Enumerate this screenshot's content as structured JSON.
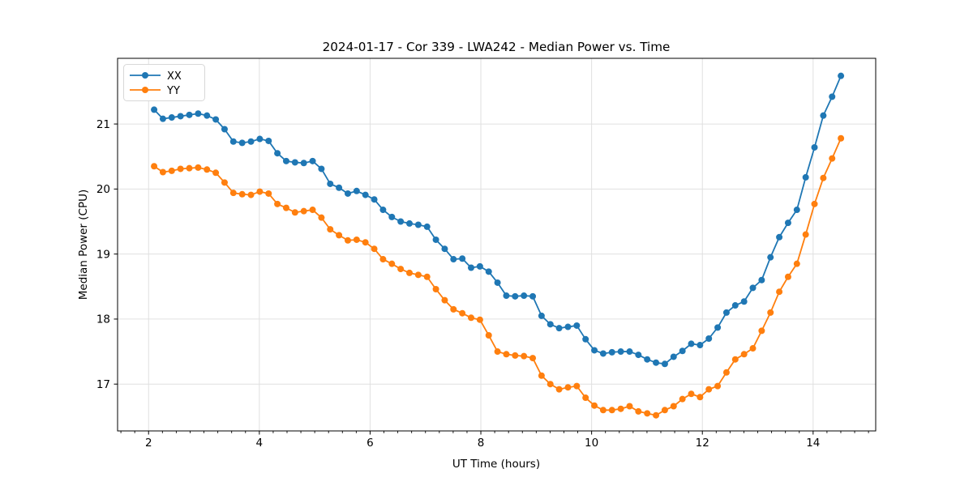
{
  "title": "2024-01-17 - Cor 339 - LWA242 - Median Power vs. Time",
  "colors": {
    "background": "#ffffff",
    "grid": "#e0e0e0",
    "axis": "#000000",
    "legend_border": "#d8d8d8",
    "series_xx": "#1f77b4",
    "series_yy": "#ff7f0e"
  },
  "chart_data": {
    "type": "line",
    "title": "2024-01-17 - Cor 339 - LWA242 - Median Power vs. Time",
    "xlabel": "UT Time (hours)",
    "ylabel": "Median Power (CPU)",
    "xlim": [
      1.44,
      15.13
    ],
    "ylim": [
      16.28,
      22.01
    ],
    "x_major_ticks": [
      2,
      4,
      6,
      8,
      10,
      12,
      14
    ],
    "x_minor_tick_step": 0.25,
    "y_major_ticks": [
      17,
      18,
      19,
      20,
      21
    ],
    "grid": true,
    "legend_position": "upper-left",
    "marker": "circle",
    "x": [
      2.1,
      2.259,
      2.418,
      2.577,
      2.736,
      2.895,
      3.054,
      3.213,
      3.372,
      3.531,
      3.69,
      3.849,
      4.008,
      4.167,
      4.326,
      4.485,
      4.644,
      4.803,
      4.962,
      5.121,
      5.28,
      5.439,
      5.598,
      5.757,
      5.916,
      6.075,
      6.234,
      6.393,
      6.552,
      6.711,
      6.87,
      7.029,
      7.188,
      7.347,
      7.506,
      7.665,
      7.824,
      7.983,
      8.142,
      8.301,
      8.46,
      8.619,
      8.778,
      8.937,
      9.096,
      9.255,
      9.414,
      9.573,
      9.732,
      9.891,
      10.05,
      10.209,
      10.368,
      10.527,
      10.686,
      10.845,
      11.004,
      11.163,
      11.322,
      11.481,
      11.64,
      11.799,
      11.958,
      12.117,
      12.276,
      12.435,
      12.594,
      12.753,
      12.912,
      13.071,
      13.23,
      13.389,
      13.548,
      13.707,
      13.866,
      14.025,
      14.184,
      14.343,
      14.502
    ],
    "series": [
      {
        "name": "XX",
        "color": "#1f77b4",
        "values": [
          21.22,
          21.08,
          21.1,
          21.12,
          21.14,
          21.16,
          21.13,
          21.07,
          20.92,
          20.73,
          20.71,
          20.73,
          20.77,
          20.74,
          20.55,
          20.43,
          20.41,
          20.4,
          20.43,
          20.31,
          20.08,
          20.02,
          19.93,
          19.97,
          19.91,
          19.84,
          19.68,
          19.57,
          19.5,
          19.47,
          19.45,
          19.42,
          19.22,
          19.08,
          18.92,
          18.93,
          18.79,
          18.81,
          18.73,
          18.56,
          18.36,
          18.35,
          18.36,
          18.35,
          18.05,
          17.92,
          17.86,
          17.88,
          17.9,
          17.69,
          17.52,
          17.47,
          17.49,
          17.5,
          17.5,
          17.45,
          17.38,
          17.33,
          17.31,
          17.42,
          17.51,
          17.62,
          17.6,
          17.7,
          17.87,
          18.1,
          18.21,
          18.27,
          18.48,
          18.6,
          18.95,
          19.26,
          19.48,
          19.68,
          20.18,
          20.64,
          21.13,
          21.42,
          21.74
        ]
      },
      {
        "name": "YY",
        "color": "#ff7f0e",
        "values": [
          20.35,
          20.26,
          20.28,
          20.31,
          20.32,
          20.33,
          20.3,
          20.25,
          20.1,
          19.94,
          19.92,
          19.91,
          19.96,
          19.93,
          19.77,
          19.71,
          19.64,
          19.66,
          19.68,
          19.56,
          19.38,
          19.29,
          19.21,
          19.22,
          19.18,
          19.08,
          18.92,
          18.85,
          18.77,
          18.71,
          18.68,
          18.65,
          18.46,
          18.29,
          18.15,
          18.09,
          18.02,
          17.99,
          17.75,
          17.5,
          17.46,
          17.44,
          17.43,
          17.4,
          17.13,
          17.0,
          16.92,
          16.95,
          16.97,
          16.79,
          16.67,
          16.6,
          16.6,
          16.62,
          16.66,
          16.58,
          16.55,
          16.52,
          16.6,
          16.66,
          16.77,
          16.85,
          16.8,
          16.92,
          16.97,
          17.18,
          17.38,
          17.46,
          17.55,
          17.82,
          18.1,
          18.42,
          18.65,
          18.85,
          19.3,
          19.77,
          20.17,
          20.47,
          20.78
        ]
      }
    ]
  }
}
